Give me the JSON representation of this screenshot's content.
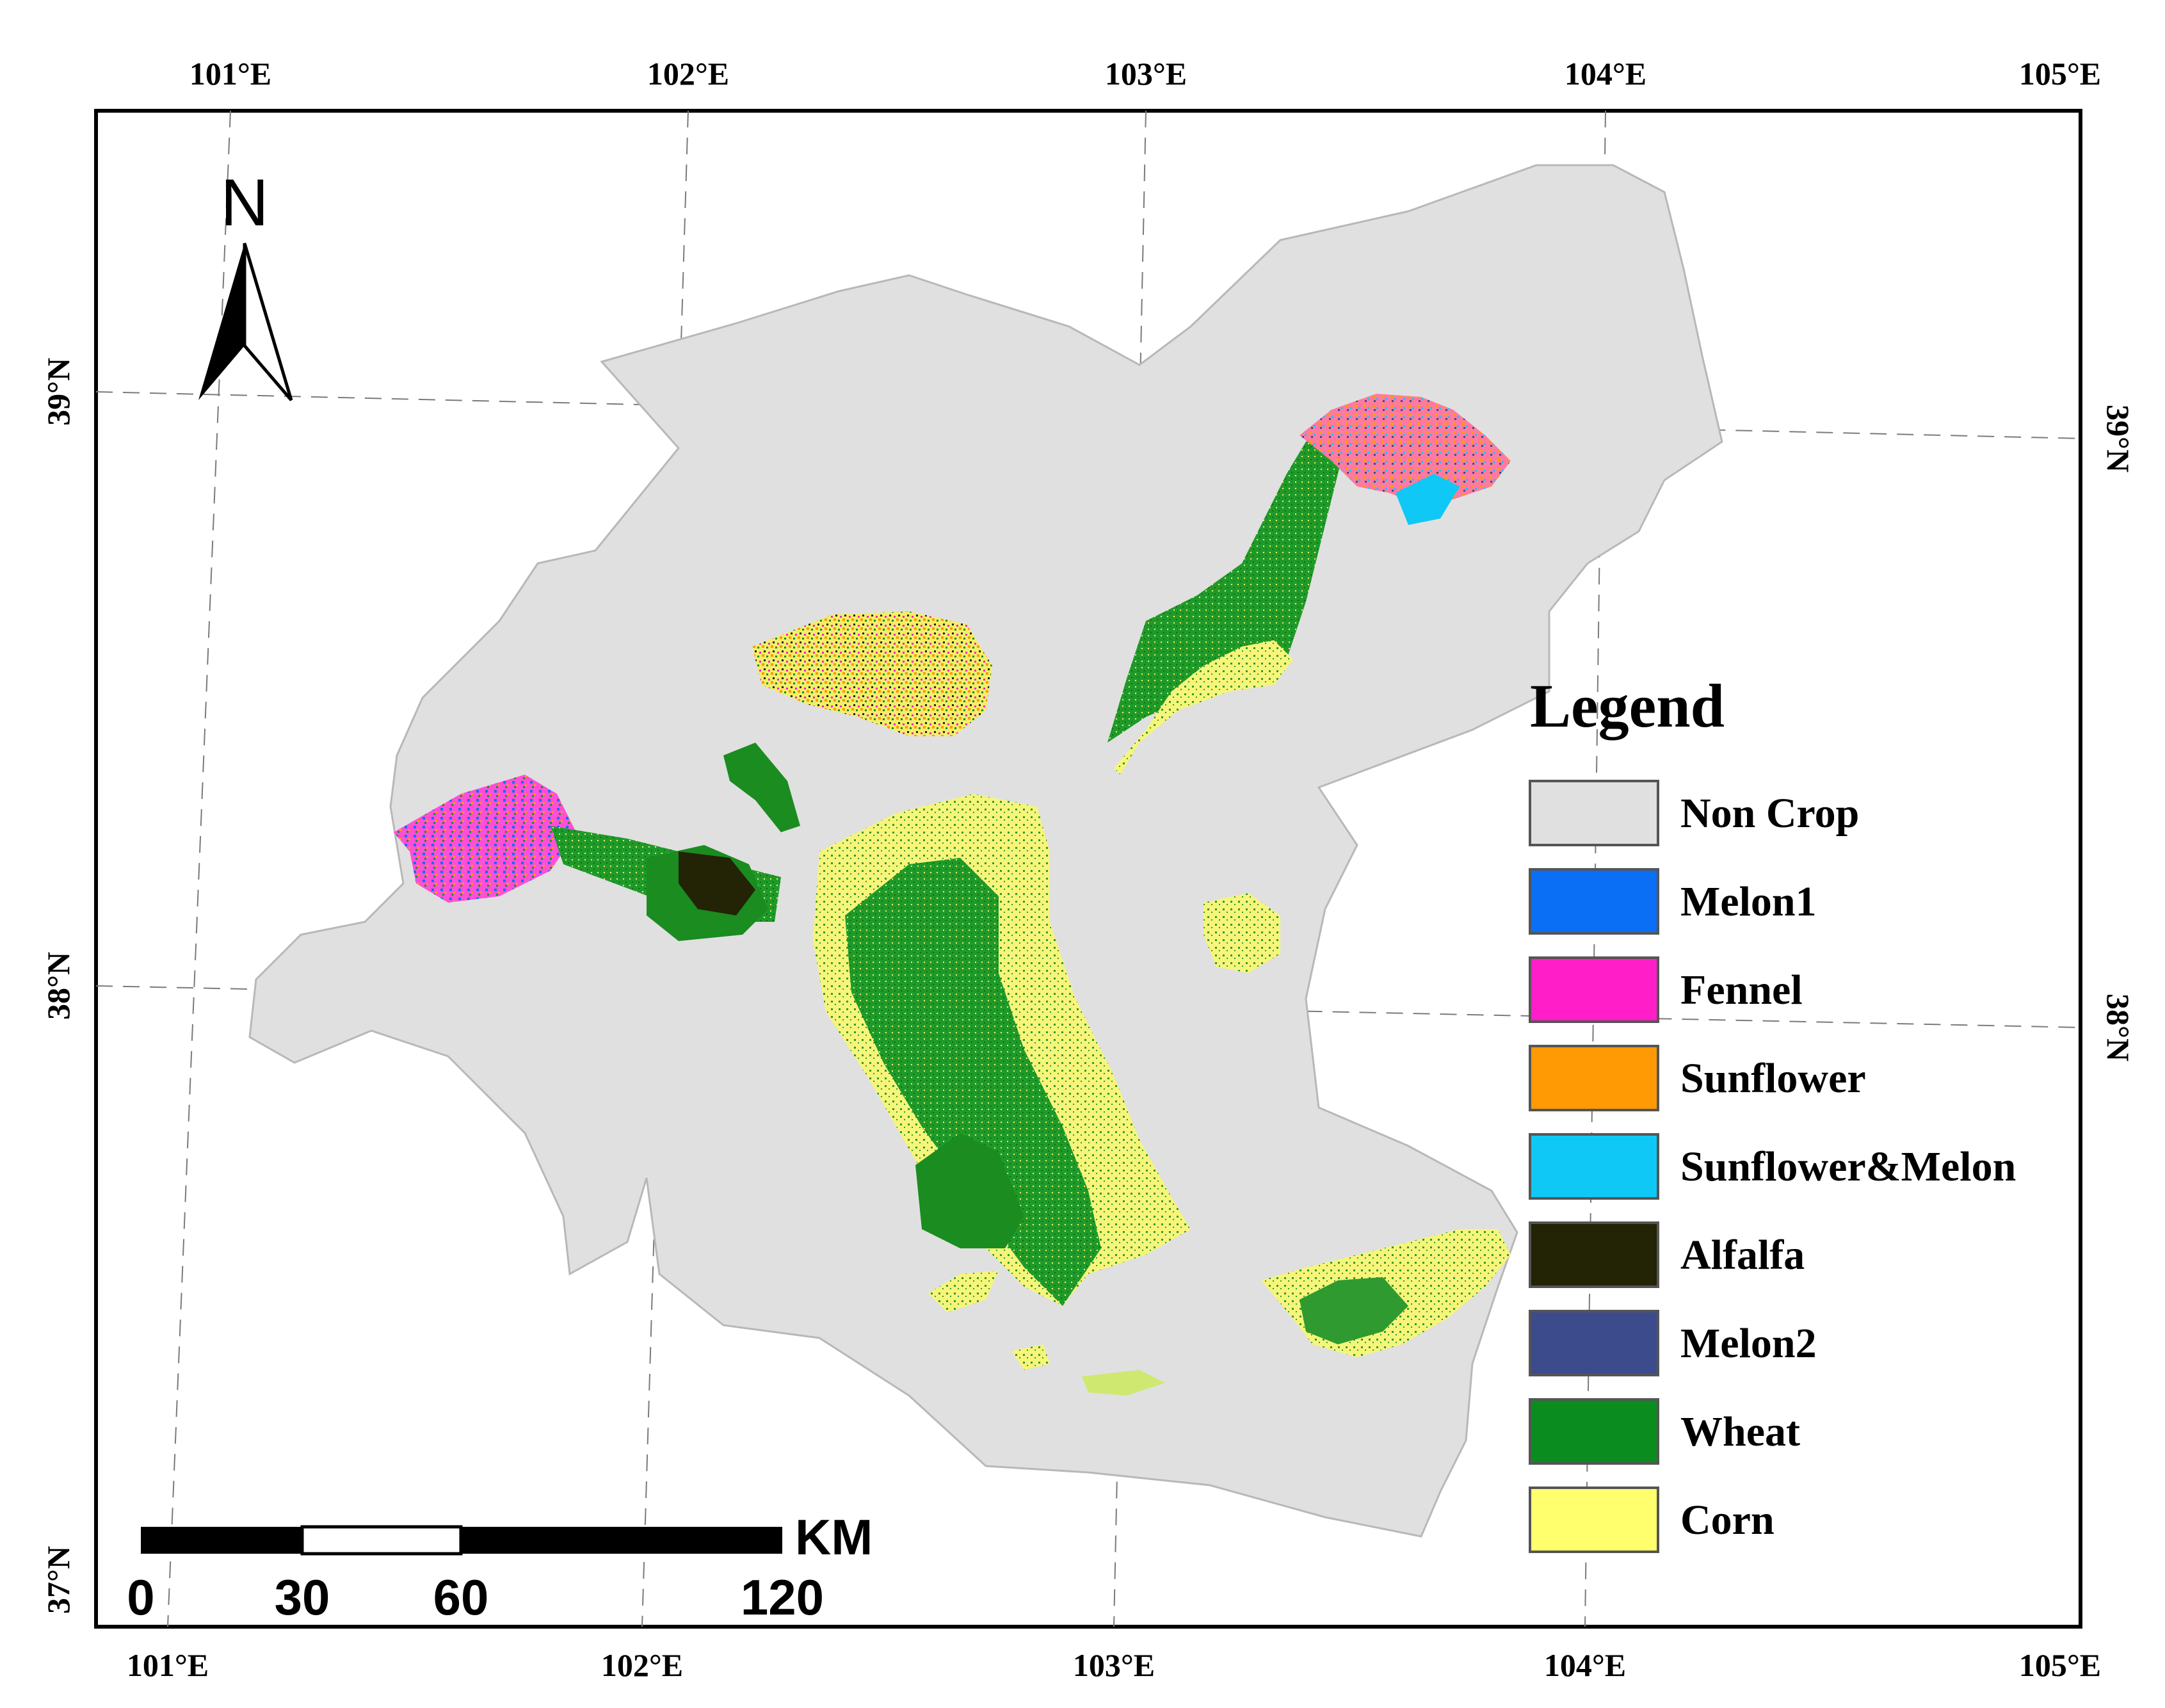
{
  "map": {
    "top_longitude_labels": [
      "101°E",
      "102°E",
      "103°E",
      "104°E",
      "105°E"
    ],
    "bottom_longitude_labels": [
      "101°E",
      "102°E",
      "103°E",
      "104°E",
      "105°E"
    ],
    "left_latitude_labels": [
      "39°N",
      "38°N",
      "37°N"
    ],
    "right_latitude_labels": [
      "39°N",
      "38°N"
    ],
    "north_arrow_label": "N",
    "background_region_color": "#e0e0e0"
  },
  "legend": {
    "title": "Legend",
    "items": [
      {
        "label": "Non Crop",
        "color": "#e0e0e0"
      },
      {
        "label": "Melon1",
        "color": "#0a6ff5"
      },
      {
        "label": "Fennel",
        "color": "#ff1ec8"
      },
      {
        "label": "Sunflower",
        "color": "#ff9a05"
      },
      {
        "label": "Sunflower&Melon",
        "color": "#10c8f5"
      },
      {
        "label": "Alfalfa",
        "color": "#232305"
      },
      {
        "label": "Melon2",
        "color": "#3c4b8c"
      },
      {
        "label": "Wheat",
        "color": "#0a8c1e"
      },
      {
        "label": "Corn",
        "color": "#ffff6e"
      }
    ]
  },
  "scale_bar": {
    "unit": "KM",
    "ticks": [
      "0",
      "30",
      "60",
      "120"
    ]
  }
}
